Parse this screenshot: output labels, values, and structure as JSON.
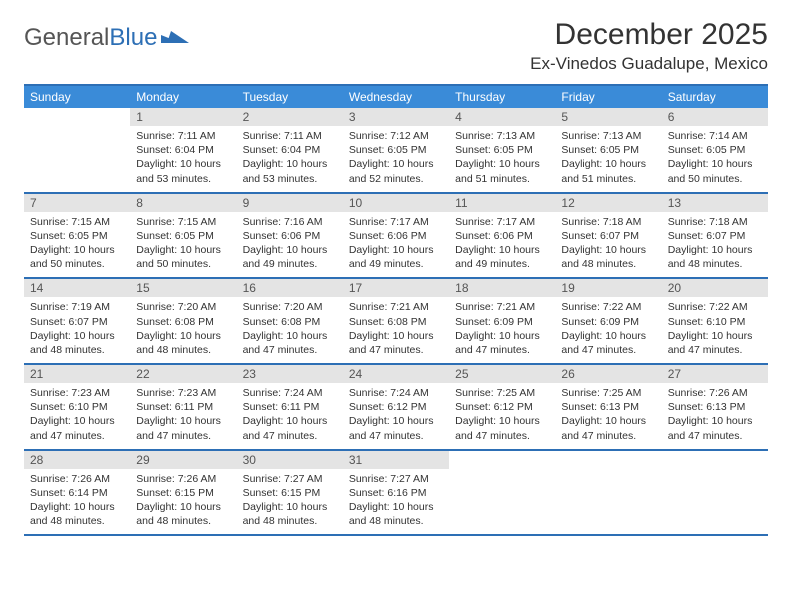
{
  "logo": {
    "part1": "General",
    "part2": "Blue"
  },
  "title": "December 2025",
  "location": "Ex-Vinedos Guadalupe, Mexico",
  "colors": {
    "header_bg": "#3a8bd8",
    "border": "#2d6fb5",
    "daynum_bg": "#e4e4e4",
    "text": "#333333",
    "logo_gray": "#555555",
    "logo_blue": "#2d6fb5",
    "background": "#ffffff"
  },
  "typography": {
    "title_fontsize": 30,
    "location_fontsize": 17,
    "dow_fontsize": 12,
    "daynum_fontsize": 12,
    "content_fontsize": 10.5
  },
  "daysOfWeek": [
    "Sunday",
    "Monday",
    "Tuesday",
    "Wednesday",
    "Thursday",
    "Friday",
    "Saturday"
  ],
  "labels": {
    "sunrise": "Sunrise:",
    "sunset": "Sunset:",
    "daylight": "Daylight:"
  },
  "weeks": [
    [
      {
        "blank": true
      },
      {
        "n": "1",
        "sr": "7:11 AM",
        "ss": "6:04 PM",
        "dl": "10 hours and 53 minutes."
      },
      {
        "n": "2",
        "sr": "7:11 AM",
        "ss": "6:04 PM",
        "dl": "10 hours and 53 minutes."
      },
      {
        "n": "3",
        "sr": "7:12 AM",
        "ss": "6:05 PM",
        "dl": "10 hours and 52 minutes."
      },
      {
        "n": "4",
        "sr": "7:13 AM",
        "ss": "6:05 PM",
        "dl": "10 hours and 51 minutes."
      },
      {
        "n": "5",
        "sr": "7:13 AM",
        "ss": "6:05 PM",
        "dl": "10 hours and 51 minutes."
      },
      {
        "n": "6",
        "sr": "7:14 AM",
        "ss": "6:05 PM",
        "dl": "10 hours and 50 minutes."
      }
    ],
    [
      {
        "n": "7",
        "sr": "7:15 AM",
        "ss": "6:05 PM",
        "dl": "10 hours and 50 minutes."
      },
      {
        "n": "8",
        "sr": "7:15 AM",
        "ss": "6:05 PM",
        "dl": "10 hours and 50 minutes."
      },
      {
        "n": "9",
        "sr": "7:16 AM",
        "ss": "6:06 PM",
        "dl": "10 hours and 49 minutes."
      },
      {
        "n": "10",
        "sr": "7:17 AM",
        "ss": "6:06 PM",
        "dl": "10 hours and 49 minutes."
      },
      {
        "n": "11",
        "sr": "7:17 AM",
        "ss": "6:06 PM",
        "dl": "10 hours and 49 minutes."
      },
      {
        "n": "12",
        "sr": "7:18 AM",
        "ss": "6:07 PM",
        "dl": "10 hours and 48 minutes."
      },
      {
        "n": "13",
        "sr": "7:18 AM",
        "ss": "6:07 PM",
        "dl": "10 hours and 48 minutes."
      }
    ],
    [
      {
        "n": "14",
        "sr": "7:19 AM",
        "ss": "6:07 PM",
        "dl": "10 hours and 48 minutes."
      },
      {
        "n": "15",
        "sr": "7:20 AM",
        "ss": "6:08 PM",
        "dl": "10 hours and 48 minutes."
      },
      {
        "n": "16",
        "sr": "7:20 AM",
        "ss": "6:08 PM",
        "dl": "10 hours and 47 minutes."
      },
      {
        "n": "17",
        "sr": "7:21 AM",
        "ss": "6:08 PM",
        "dl": "10 hours and 47 minutes."
      },
      {
        "n": "18",
        "sr": "7:21 AM",
        "ss": "6:09 PM",
        "dl": "10 hours and 47 minutes."
      },
      {
        "n": "19",
        "sr": "7:22 AM",
        "ss": "6:09 PM",
        "dl": "10 hours and 47 minutes."
      },
      {
        "n": "20",
        "sr": "7:22 AM",
        "ss": "6:10 PM",
        "dl": "10 hours and 47 minutes."
      }
    ],
    [
      {
        "n": "21",
        "sr": "7:23 AM",
        "ss": "6:10 PM",
        "dl": "10 hours and 47 minutes."
      },
      {
        "n": "22",
        "sr": "7:23 AM",
        "ss": "6:11 PM",
        "dl": "10 hours and 47 minutes."
      },
      {
        "n": "23",
        "sr": "7:24 AM",
        "ss": "6:11 PM",
        "dl": "10 hours and 47 minutes."
      },
      {
        "n": "24",
        "sr": "7:24 AM",
        "ss": "6:12 PM",
        "dl": "10 hours and 47 minutes."
      },
      {
        "n": "25",
        "sr": "7:25 AM",
        "ss": "6:12 PM",
        "dl": "10 hours and 47 minutes."
      },
      {
        "n": "26",
        "sr": "7:25 AM",
        "ss": "6:13 PM",
        "dl": "10 hours and 47 minutes."
      },
      {
        "n": "27",
        "sr": "7:26 AM",
        "ss": "6:13 PM",
        "dl": "10 hours and 47 minutes."
      }
    ],
    [
      {
        "n": "28",
        "sr": "7:26 AM",
        "ss": "6:14 PM",
        "dl": "10 hours and 48 minutes."
      },
      {
        "n": "29",
        "sr": "7:26 AM",
        "ss": "6:15 PM",
        "dl": "10 hours and 48 minutes."
      },
      {
        "n": "30",
        "sr": "7:27 AM",
        "ss": "6:15 PM",
        "dl": "10 hours and 48 minutes."
      },
      {
        "n": "31",
        "sr": "7:27 AM",
        "ss": "6:16 PM",
        "dl": "10 hours and 48 minutes."
      },
      {
        "blank": true
      },
      {
        "blank": true
      },
      {
        "blank": true
      }
    ]
  ]
}
